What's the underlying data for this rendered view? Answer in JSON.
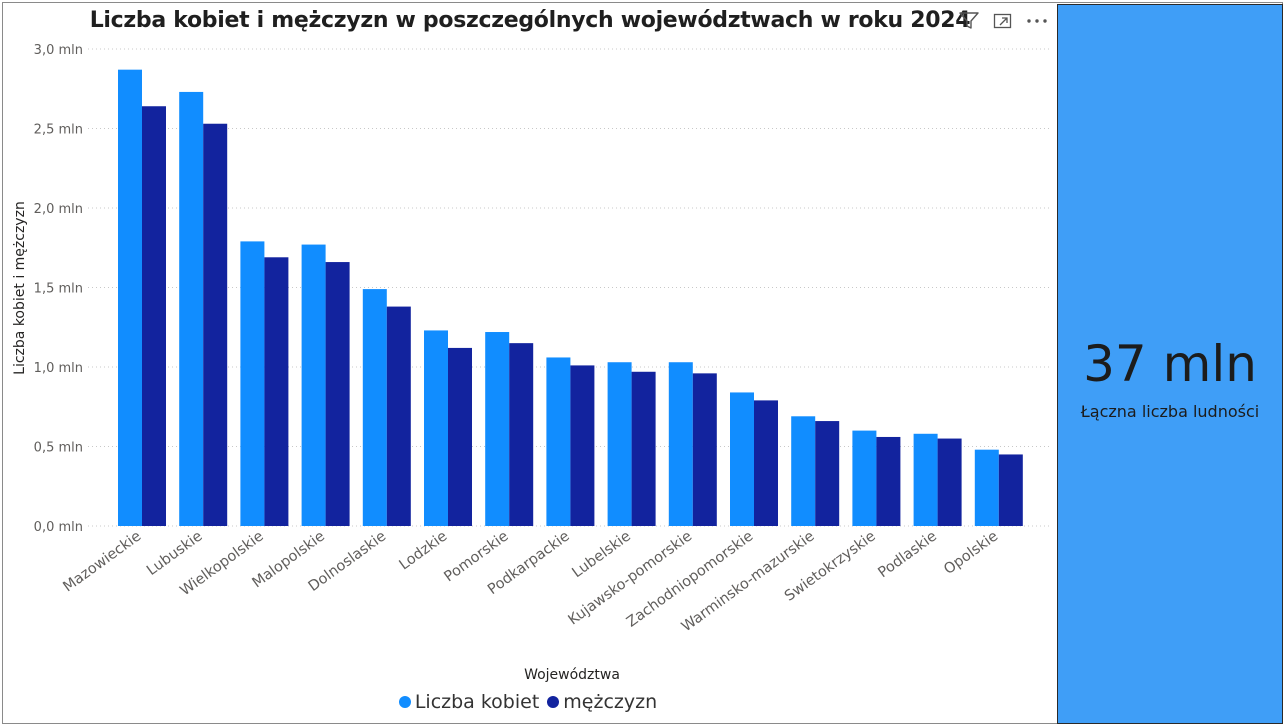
{
  "chart_data": {
    "type": "bar",
    "title": "Liczba kobiet i mężczyzn w poszczególnych województwach w roku 2024",
    "xlabel": "Województwa",
    "ylabel": "Liczba kobiet i mężczyzn",
    "ylim": [
      0,
      3.0
    ],
    "yticks": [
      "0,0 mln",
      "0,5 mln",
      "1,0 mln",
      "1,5 mln",
      "2,0 mln",
      "2,5 mln",
      "3,0 mln"
    ],
    "grid": true,
    "legend_position": "bottom-center",
    "categories": [
      "Mazowieckie",
      "Lubuskie",
      "Wielkopolskie",
      "Malopolskie",
      "Dolnoslaskie",
      "Lodzkie",
      "Pomorskie",
      "Podkarpackie",
      "Lubelskie",
      "Kujawsko-pomorskie",
      "Zachodniopomorskie",
      "Warminsko-mazurskie",
      "Swietokrzyskie",
      "Podlaskie",
      "Opolskie"
    ],
    "series": [
      {
        "name": "Liczba kobiet",
        "color": "#118dff",
        "values": [
          2.87,
          2.73,
          1.79,
          1.77,
          1.49,
          1.23,
          1.22,
          1.06,
          1.03,
          1.03,
          0.84,
          0.69,
          0.6,
          0.58,
          0.48
        ]
      },
      {
        "name": "mężczyzn",
        "color": "#12239e",
        "values": [
          2.64,
          2.53,
          1.69,
          1.66,
          1.38,
          1.12,
          1.15,
          1.01,
          0.97,
          0.96,
          0.79,
          0.66,
          0.56,
          0.55,
          0.45
        ]
      }
    ]
  },
  "visual_header": {
    "icons": [
      "filter-icon",
      "focus-mode-icon",
      "more-options-icon"
    ]
  },
  "card": {
    "value": "37 mln",
    "label": "Łączna liczba ludności",
    "background": "#3f9ef7"
  }
}
